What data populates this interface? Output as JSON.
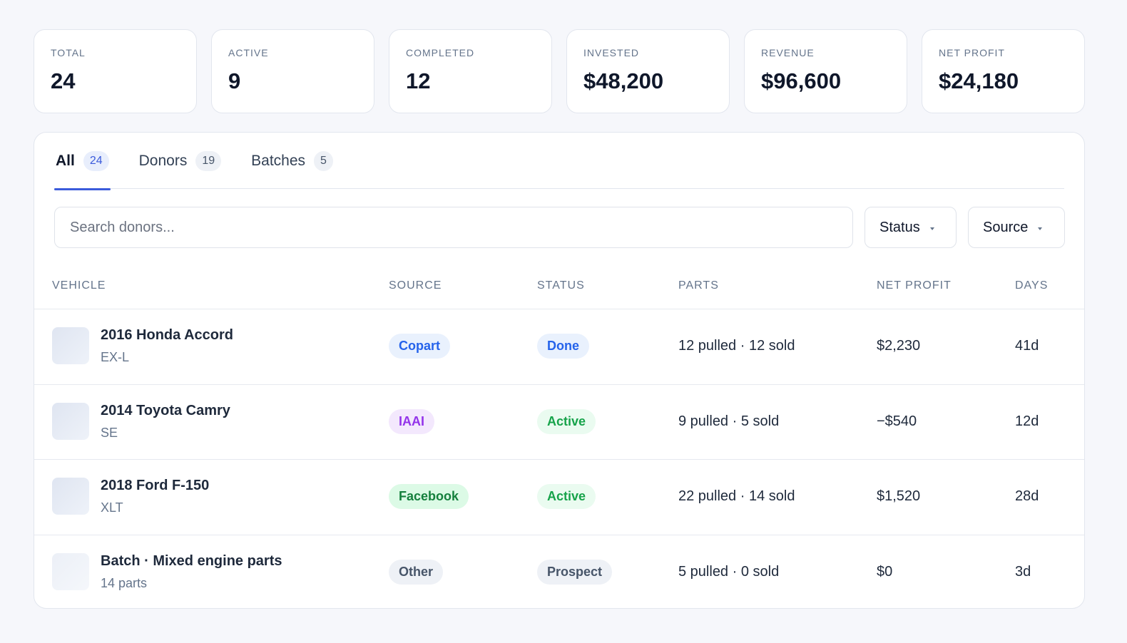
{
  "stats": [
    {
      "label": "TOTAL",
      "value": "24"
    },
    {
      "label": "ACTIVE",
      "value": "9"
    },
    {
      "label": "COMPLETED",
      "value": "12"
    },
    {
      "label": "INVESTED",
      "value": "$48,200"
    },
    {
      "label": "REVENUE",
      "value": "$96,600"
    },
    {
      "label": "NET PROFIT",
      "value": "$24,180"
    }
  ],
  "tabs": [
    {
      "label": "All",
      "count": "24",
      "active": true
    },
    {
      "label": "Donors",
      "count": "19",
      "active": false
    },
    {
      "label": "Batches",
      "count": "5",
      "active": false
    }
  ],
  "search_placeholder": "Search donors...",
  "filters": [
    "Status",
    "Source"
  ],
  "table": {
    "headers": [
      "VEHICLE",
      "SOURCE",
      "STATUS",
      "PARTS",
      "NET PROFIT",
      "DAYS"
    ],
    "rows": [
      {
        "title": "2016 Honda Accord",
        "subtitle": "EX-L",
        "source": {
          "label": "Copart",
          "color": "#2563eb",
          "bg": "#e9f1fd"
        },
        "status": {
          "label": "Done",
          "color": "#2563eb",
          "bg": "#e9f1fd"
        },
        "parts": "12 pulled · 12 sold",
        "net_profit": "$2,230",
        "days": "41d"
      },
      {
        "title": "2014 Toyota Camry",
        "subtitle": "SE",
        "source": {
          "label": "IAAI",
          "color": "#9333ea",
          "bg": "#f3e8fd"
        },
        "status": {
          "label": "Active",
          "color": "#16a34a",
          "bg": "#eafbf0"
        },
        "parts": "9 pulled · 5 sold",
        "net_profit": "−$540",
        "days": "12d"
      },
      {
        "title": "2018 Ford F-150",
        "subtitle": "XLT",
        "source": {
          "label": "Facebook",
          "color": "#15803d",
          "bg": "#dcfae6"
        },
        "status": {
          "label": "Active",
          "color": "#16a34a",
          "bg": "#eafbf0"
        },
        "parts": "22 pulled · 14 sold",
        "net_profit": "$1,520",
        "days": "28d"
      },
      {
        "title": "Batch · Mixed engine parts",
        "subtitle": "14 parts",
        "source": {
          "label": "Other",
          "color": "#475569",
          "bg": "#eef1f6"
        },
        "status": {
          "label": "Prospect",
          "color": "#475569",
          "bg": "#eef1f6"
        },
        "parts": "5 pulled · 0 sold",
        "net_profit": "$0",
        "days": "3d"
      }
    ]
  }
}
